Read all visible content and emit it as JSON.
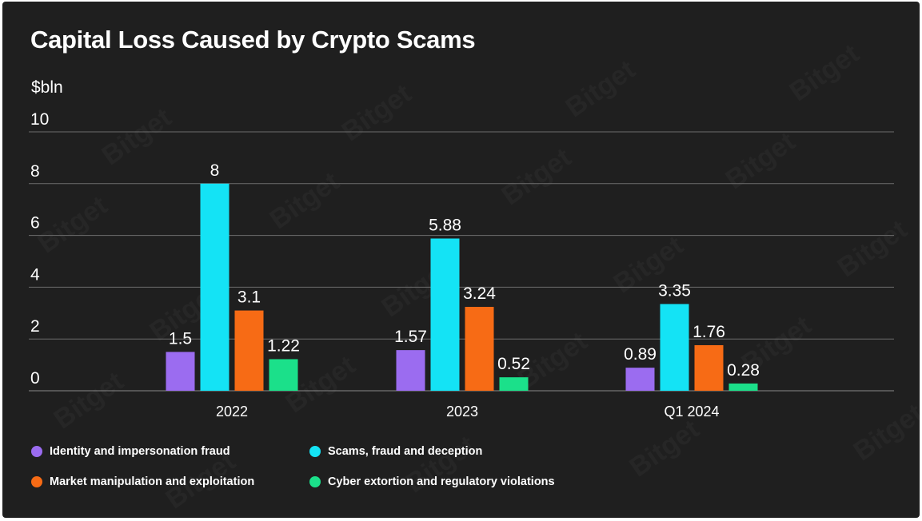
{
  "watermark": "Bitget",
  "chart_data": {
    "type": "bar",
    "title": "Capital Loss Caused by Crypto Scams",
    "ylabel": "$bln",
    "xlabel": "",
    "categories": [
      "2022",
      "2023",
      "Q1 2024"
    ],
    "ylim": [
      0,
      10
    ],
    "yticks": [
      0,
      2,
      4,
      6,
      8,
      10
    ],
    "grid": true,
    "legend_placement": "bottom",
    "series": [
      {
        "name": "Identity and impersonation fraud",
        "color": "#9b6cf0",
        "values": [
          1.5,
          1.57,
          0.89
        ],
        "labels": [
          "1.5",
          "1.57",
          "0.89"
        ]
      },
      {
        "name": "Scams, fraud and deception",
        "color": "#14e3f5",
        "values": [
          8,
          5.88,
          3.35
        ],
        "labels": [
          "8",
          "5.88",
          "3.35"
        ]
      },
      {
        "name": "Market manipulation and exploitation",
        "color": "#f76b15",
        "values": [
          3.1,
          3.24,
          1.76
        ],
        "labels": [
          "3.1",
          "3.24",
          "1.76"
        ]
      },
      {
        "name": "Cyber extortion and regulatory violations",
        "color": "#1be08a",
        "values": [
          1.22,
          0.52,
          0.28
        ],
        "labels": [
          "1.22",
          "0.52",
          "0.28"
        ]
      }
    ]
  }
}
